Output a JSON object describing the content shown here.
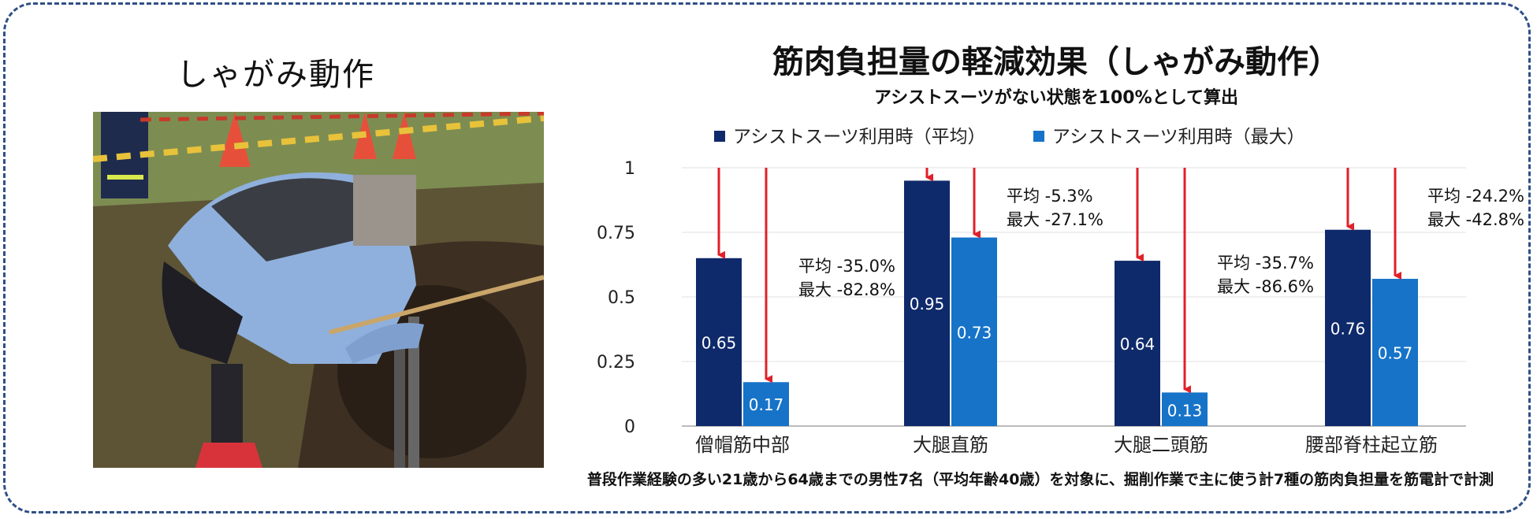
{
  "photo": {
    "title": "しゃがみ動作"
  },
  "chart_data": {
    "type": "bar",
    "title": "筋肉負担量の軽減効果（しゃがみ動作）",
    "subtitle": "アシストスーツがない状態を100%として算出",
    "categories": [
      "僧帽筋中部",
      "大腿直筋",
      "大腿二頭筋",
      "腰部脊柱起立筋"
    ],
    "series": [
      {
        "name": "アシストスーツ利用時（平均）",
        "values": [
          0.65,
          0.95,
          0.64,
          0.76
        ],
        "labels": [
          "0.65",
          "0.95",
          "0.64",
          "0.76"
        ],
        "color": "#0f2a6b"
      },
      {
        "name": "アシストスーツ利用時（最大）",
        "values": [
          0.17,
          0.73,
          0.13,
          0.57
        ],
        "labels": [
          "0.17",
          "0.73",
          "0.13",
          "0.57"
        ],
        "color": "#1673c8"
      }
    ],
    "ylim": [
      0,
      1
    ],
    "yticks": [
      0,
      0.25,
      0.5,
      0.75,
      1
    ],
    "ytick_labels": [
      "0",
      "0.25",
      "0.5",
      "0.75",
      "1"
    ],
    "legend_position": "top",
    "grid": true,
    "arrow_color": "#e0202a",
    "annotations": [
      {
        "category": "僧帽筋中部",
        "lines": [
          "平均 -35.0%",
          "最大 -82.8%"
        ]
      },
      {
        "category": "大腿直筋",
        "lines": [
          "平均 -5.3%",
          "最大 -27.1%"
        ]
      },
      {
        "category": "大腿二頭筋",
        "lines": [
          "平均 -35.7%",
          "最大 -86.6%"
        ]
      },
      {
        "category": "腰部脊柱起立筋",
        "lines": [
          "平均 -24.2%",
          "最大 -42.8%"
        ]
      }
    ],
    "footnote": "普段作業経験の多い21歳から64歳までの男性7名（平均年齢40歳）を対象に、掘削作業で主に使う計7種の筋肉負担量を筋電計で計測"
  }
}
